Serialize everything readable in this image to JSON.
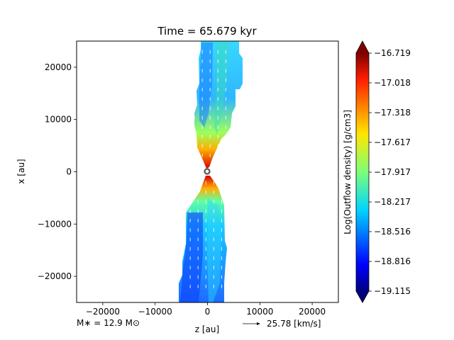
{
  "chart_data": {
    "type": "heatmap",
    "title": "Time = 65.679 kyr",
    "xlabel": "z [au]",
    "ylabel": "x [au]",
    "xlim": [
      -25000,
      25000
    ],
    "ylim": [
      -25000,
      25000
    ],
    "xticks": [
      -20000,
      -10000,
      0,
      10000,
      20000
    ],
    "xtick_labels": [
      "−20000",
      "−10000",
      "0",
      "10000",
      "20000"
    ],
    "yticks": [
      20000,
      10000,
      0,
      -10000,
      -20000
    ],
    "ytick_labels": [
      "20000",
      "10000",
      "0",
      "−10000",
      "−20000"
    ],
    "colorbar": {
      "label": "Log(Outflow density) [g/cm3]",
      "vmin": -19.115,
      "vmax": -16.719,
      "ticks": [
        -16.719,
        -17.018,
        -17.318,
        -17.617,
        -17.917,
        -18.217,
        -18.516,
        -18.816,
        -19.115
      ],
      "tick_labels": [
        "−16.719",
        "−17.018",
        "−17.318",
        "−17.617",
        "−17.917",
        "−18.217",
        "−18.516",
        "−18.816",
        "−19.115"
      ],
      "colormap": "jet",
      "extend": "both"
    },
    "annotations": {
      "star_mass": "M∗ = 12.9 M⊙",
      "velocity_key": "25.78 [km/s]"
    },
    "grid": false,
    "outflow_lobes": [
      {
        "name": "upper",
        "x_range_at_top": [
          -1500,
          6000
        ],
        "x_range_at_mid": [
          -2300,
          4800
        ],
        "tip_x": 200,
        "tip_y": 1000
      },
      {
        "name": "lower",
        "x_range_at_bottom": [
          -5500,
          3500
        ],
        "x_range_at_mid": [
          -3800,
          4000
        ],
        "tip_x": 200,
        "tip_y": -1000
      }
    ]
  }
}
